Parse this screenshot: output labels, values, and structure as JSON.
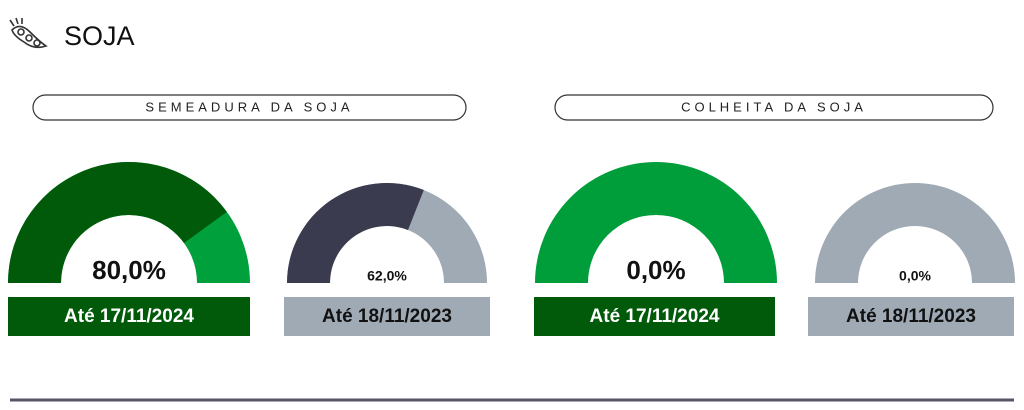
{
  "header": {
    "title": "SOJA"
  },
  "sections": [
    {
      "title": "SEMEADURA DA SOJA"
    },
    {
      "title": "COLHEITA DA SOJA"
    }
  ],
  "chart_data": [
    {
      "type": "gauge",
      "values": [
        80
      ],
      "value_labels": [
        "80,0%"
      ],
      "ylim": [
        0,
        100
      ],
      "caption": "Até 17/11/2024",
      "color": "#005a0a",
      "track_color": "#00a03c",
      "caption_color": "#005a0a",
      "caption_text_color": "#ffffff",
      "size": "large"
    },
    {
      "type": "gauge",
      "values": [
        62
      ],
      "value_labels": [
        "62,0%"
      ],
      "ylim": [
        0,
        100
      ],
      "caption": "Até 18/11/2023",
      "color": "#3b3b4f",
      "track_color": "#a0aab5",
      "caption_color": "#a0aab5",
      "caption_text_color": "#111111",
      "size": "small"
    },
    {
      "type": "gauge",
      "values": [
        0
      ],
      "value_labels": [
        "0,0%"
      ],
      "ylim": [
        0,
        100
      ],
      "caption": "Até 17/11/2024",
      "color": "#005a0a",
      "track_color": "#009e3b",
      "caption_color": "#005a0a",
      "caption_text_color": "#ffffff",
      "size": "large"
    },
    {
      "type": "gauge",
      "values": [
        0
      ],
      "value_labels": [
        "0,0%"
      ],
      "ylim": [
        0,
        100
      ],
      "caption": "Até 18/11/2023",
      "color": "#3b3b4f",
      "track_color": "#a0aab5",
      "caption_color": "#a0aab5",
      "caption_text_color": "#111111",
      "size": "small"
    }
  ]
}
